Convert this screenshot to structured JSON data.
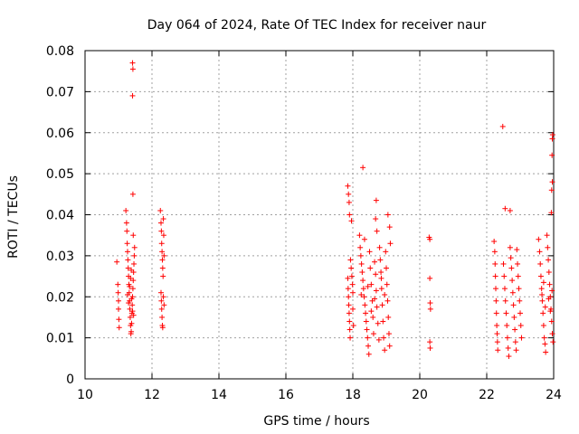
{
  "chart_data": {
    "type": "scatter",
    "title": "Day 064 of 2024, Rate Of TEC Index for receiver naur",
    "xlabel": "GPS time / hours",
    "ylabel": "ROTI / TECUs",
    "xlim": [
      10,
      24
    ],
    "ylim": [
      0,
      0.08
    ],
    "x_ticks": [
      10,
      12,
      14,
      16,
      18,
      20,
      22,
      24
    ],
    "y_ticks": [
      0,
      0.01,
      0.02,
      0.03,
      0.04,
      0.05,
      0.06,
      0.07,
      0.08
    ],
    "x_tick_labels": [
      "10",
      "12",
      "14",
      "16",
      "18",
      "20",
      "22",
      "24"
    ],
    "y_tick_labels": [
      "0",
      "0.01",
      "0.02",
      "0.03",
      "0.04",
      "0.05",
      "0.06",
      "0.07",
      "0.08"
    ],
    "grid": true,
    "marker": "+",
    "color": "#ff0000",
    "series": [
      {
        "name": "ROTI",
        "points": [
          [
            10.95,
            0.0285
          ],
          [
            10.98,
            0.023
          ],
          [
            10.99,
            0.021
          ],
          [
            11.0,
            0.019
          ],
          [
            11.0,
            0.017
          ],
          [
            11.01,
            0.0145
          ],
          [
            11.02,
            0.0125
          ],
          [
            11.22,
            0.041
          ],
          [
            11.24,
            0.038
          ],
          [
            11.25,
            0.036
          ],
          [
            11.26,
            0.033
          ],
          [
            11.27,
            0.031
          ],
          [
            11.28,
            0.029
          ],
          [
            11.29,
            0.027
          ],
          [
            11.3,
            0.025
          ],
          [
            11.31,
            0.023
          ],
          [
            11.32,
            0.021
          ],
          [
            11.33,
            0.019
          ],
          [
            11.34,
            0.017
          ],
          [
            11.35,
            0.015
          ],
          [
            11.36,
            0.013
          ],
          [
            11.37,
            0.011
          ],
          [
            11.38,
            0.0115
          ],
          [
            11.39,
            0.0135
          ],
          [
            11.4,
            0.016
          ],
          [
            11.41,
            0.018
          ],
          [
            11.42,
            0.02
          ],
          [
            11.43,
            0.022
          ],
          [
            11.44,
            0.024
          ],
          [
            11.45,
            0.026
          ],
          [
            11.46,
            0.028
          ],
          [
            11.47,
            0.03
          ],
          [
            11.48,
            0.032
          ],
          [
            11.27,
            0.0205
          ],
          [
            11.3,
            0.0185
          ],
          [
            11.33,
            0.0225
          ],
          [
            11.36,
            0.0245
          ],
          [
            11.39,
            0.0195
          ],
          [
            11.42,
            0.0165
          ],
          [
            11.45,
            0.0155
          ],
          [
            11.38,
            0.0265
          ],
          [
            11.42,
            0.077
          ],
          [
            11.43,
            0.0755
          ],
          [
            11.42,
            0.069
          ],
          [
            11.43,
            0.045
          ],
          [
            11.44,
            0.035
          ],
          [
            12.25,
            0.041
          ],
          [
            12.27,
            0.038
          ],
          [
            12.28,
            0.036
          ],
          [
            12.29,
            0.033
          ],
          [
            12.3,
            0.031
          ],
          [
            12.31,
            0.029
          ],
          [
            12.32,
            0.027
          ],
          [
            12.33,
            0.025
          ],
          [
            12.27,
            0.021
          ],
          [
            12.28,
            0.019
          ],
          [
            12.29,
            0.017
          ],
          [
            12.3,
            0.015
          ],
          [
            12.31,
            0.013
          ],
          [
            12.32,
            0.0125
          ],
          [
            12.34,
            0.039
          ],
          [
            12.35,
            0.035
          ],
          [
            12.36,
            0.03
          ],
          [
            12.34,
            0.02
          ],
          [
            12.36,
            0.018
          ],
          [
            17.85,
            0.047
          ],
          [
            17.87,
            0.045
          ],
          [
            17.89,
            0.043
          ],
          [
            17.9,
            0.04
          ],
          [
            17.85,
            0.0245
          ],
          [
            17.86,
            0.022
          ],
          [
            17.87,
            0.02
          ],
          [
            17.88,
            0.018
          ],
          [
            17.89,
            0.016
          ],
          [
            17.9,
            0.014
          ],
          [
            17.91,
            0.012
          ],
          [
            17.92,
            0.01
          ],
          [
            17.93,
            0.029
          ],
          [
            17.95,
            0.027
          ],
          [
            17.97,
            0.025
          ],
          [
            17.99,
            0.023
          ],
          [
            18.0,
            0.021
          ],
          [
            17.96,
            0.0385
          ],
          [
            18.0,
            0.017
          ],
          [
            18.02,
            0.013
          ],
          [
            18.2,
            0.035
          ],
          [
            18.22,
            0.032
          ],
          [
            18.24,
            0.03
          ],
          [
            18.26,
            0.028
          ],
          [
            18.28,
            0.026
          ],
          [
            18.3,
            0.024
          ],
          [
            18.32,
            0.022
          ],
          [
            18.34,
            0.02
          ],
          [
            18.36,
            0.018
          ],
          [
            18.38,
            0.016
          ],
          [
            18.4,
            0.014
          ],
          [
            18.42,
            0.012
          ],
          [
            18.44,
            0.01
          ],
          [
            18.46,
            0.008
          ],
          [
            18.48,
            0.006
          ],
          [
            18.3,
            0.0515
          ],
          [
            18.35,
            0.034
          ],
          [
            18.5,
            0.031
          ],
          [
            18.52,
            0.027
          ],
          [
            18.55,
            0.023
          ],
          [
            18.58,
            0.019
          ],
          [
            18.6,
            0.015
          ],
          [
            18.62,
            0.011
          ],
          [
            18.65,
            0.0285
          ],
          [
            18.68,
            0.0255
          ],
          [
            18.7,
            0.0215
          ],
          [
            18.72,
            0.0175
          ],
          [
            18.75,
            0.0135
          ],
          [
            18.78,
            0.0095
          ],
          [
            18.7,
            0.0435
          ],
          [
            18.68,
            0.039
          ],
          [
            18.72,
            0.036
          ],
          [
            18.8,
            0.032
          ],
          [
            18.82,
            0.029
          ],
          [
            18.84,
            0.026
          ],
          [
            18.86,
            0.022
          ],
          [
            18.88,
            0.018
          ],
          [
            18.9,
            0.014
          ],
          [
            18.92,
            0.01
          ],
          [
            18.95,
            0.007
          ],
          [
            18.98,
            0.031
          ],
          [
            19.0,
            0.027
          ],
          [
            19.02,
            0.023
          ],
          [
            19.04,
            0.019
          ],
          [
            19.06,
            0.015
          ],
          [
            19.08,
            0.011
          ],
          [
            19.1,
            0.008
          ],
          [
            19.05,
            0.04
          ],
          [
            19.1,
            0.037
          ],
          [
            19.12,
            0.033
          ],
          [
            18.25,
            0.0205
          ],
          [
            18.45,
            0.0225
          ],
          [
            18.55,
            0.0165
          ],
          [
            18.65,
            0.0195
          ],
          [
            18.85,
            0.0245
          ],
          [
            18.95,
            0.0205
          ],
          [
            20.28,
            0.0345
          ],
          [
            20.3,
            0.034
          ],
          [
            20.3,
            0.0245
          ],
          [
            20.31,
            0.0185
          ],
          [
            20.32,
            0.017
          ],
          [
            20.3,
            0.009
          ],
          [
            20.31,
            0.0075
          ],
          [
            22.22,
            0.0335
          ],
          [
            22.24,
            0.031
          ],
          [
            22.25,
            0.028
          ],
          [
            22.26,
            0.025
          ],
          [
            22.27,
            0.022
          ],
          [
            22.28,
            0.019
          ],
          [
            22.29,
            0.016
          ],
          [
            22.3,
            0.013
          ],
          [
            22.31,
            0.011
          ],
          [
            22.32,
            0.009
          ],
          [
            22.33,
            0.007
          ],
          [
            22.48,
            0.0615
          ],
          [
            22.55,
            0.0415
          ],
          [
            22.7,
            0.041
          ],
          [
            22.5,
            0.028
          ],
          [
            22.52,
            0.025
          ],
          [
            22.54,
            0.022
          ],
          [
            22.56,
            0.019
          ],
          [
            22.58,
            0.016
          ],
          [
            22.6,
            0.013
          ],
          [
            22.62,
            0.01
          ],
          [
            22.64,
            0.0075
          ],
          [
            22.66,
            0.0055
          ],
          [
            22.7,
            0.032
          ],
          [
            22.72,
            0.0295
          ],
          [
            22.74,
            0.027
          ],
          [
            22.76,
            0.024
          ],
          [
            22.78,
            0.021
          ],
          [
            22.8,
            0.018
          ],
          [
            22.82,
            0.015
          ],
          [
            22.84,
            0.012
          ],
          [
            22.86,
            0.009
          ],
          [
            22.88,
            0.007
          ],
          [
            22.9,
            0.0315
          ],
          [
            22.92,
            0.028
          ],
          [
            22.94,
            0.025
          ],
          [
            22.96,
            0.022
          ],
          [
            22.98,
            0.019
          ],
          [
            23.0,
            0.016
          ],
          [
            23.02,
            0.013
          ],
          [
            23.04,
            0.01
          ],
          [
            23.55,
            0.034
          ],
          [
            23.58,
            0.031
          ],
          [
            23.6,
            0.028
          ],
          [
            23.62,
            0.025
          ],
          [
            23.64,
            0.022
          ],
          [
            23.66,
            0.019
          ],
          [
            23.68,
            0.016
          ],
          [
            23.7,
            0.013
          ],
          [
            23.72,
            0.01
          ],
          [
            23.74,
            0.0085
          ],
          [
            23.76,
            0.0065
          ],
          [
            23.8,
            0.035
          ],
          [
            23.82,
            0.032
          ],
          [
            23.84,
            0.029
          ],
          [
            23.86,
            0.026
          ],
          [
            23.88,
            0.023
          ],
          [
            23.9,
            0.02
          ],
          [
            23.92,
            0.017
          ],
          [
            23.94,
            0.014
          ],
          [
            23.96,
            0.011
          ],
          [
            23.98,
            0.009
          ],
          [
            23.97,
            0.0595
          ],
          [
            23.96,
            0.0585
          ],
          [
            23.95,
            0.0545
          ],
          [
            23.96,
            0.048
          ],
          [
            23.94,
            0.046
          ],
          [
            23.93,
            0.0405
          ],
          [
            23.65,
            0.0205
          ],
          [
            23.7,
            0.0235
          ],
          [
            23.75,
            0.0175
          ],
          [
            23.85,
            0.0195
          ],
          [
            23.9,
            0.0165
          ],
          [
            23.95,
            0.0215
          ]
        ]
      }
    ]
  }
}
